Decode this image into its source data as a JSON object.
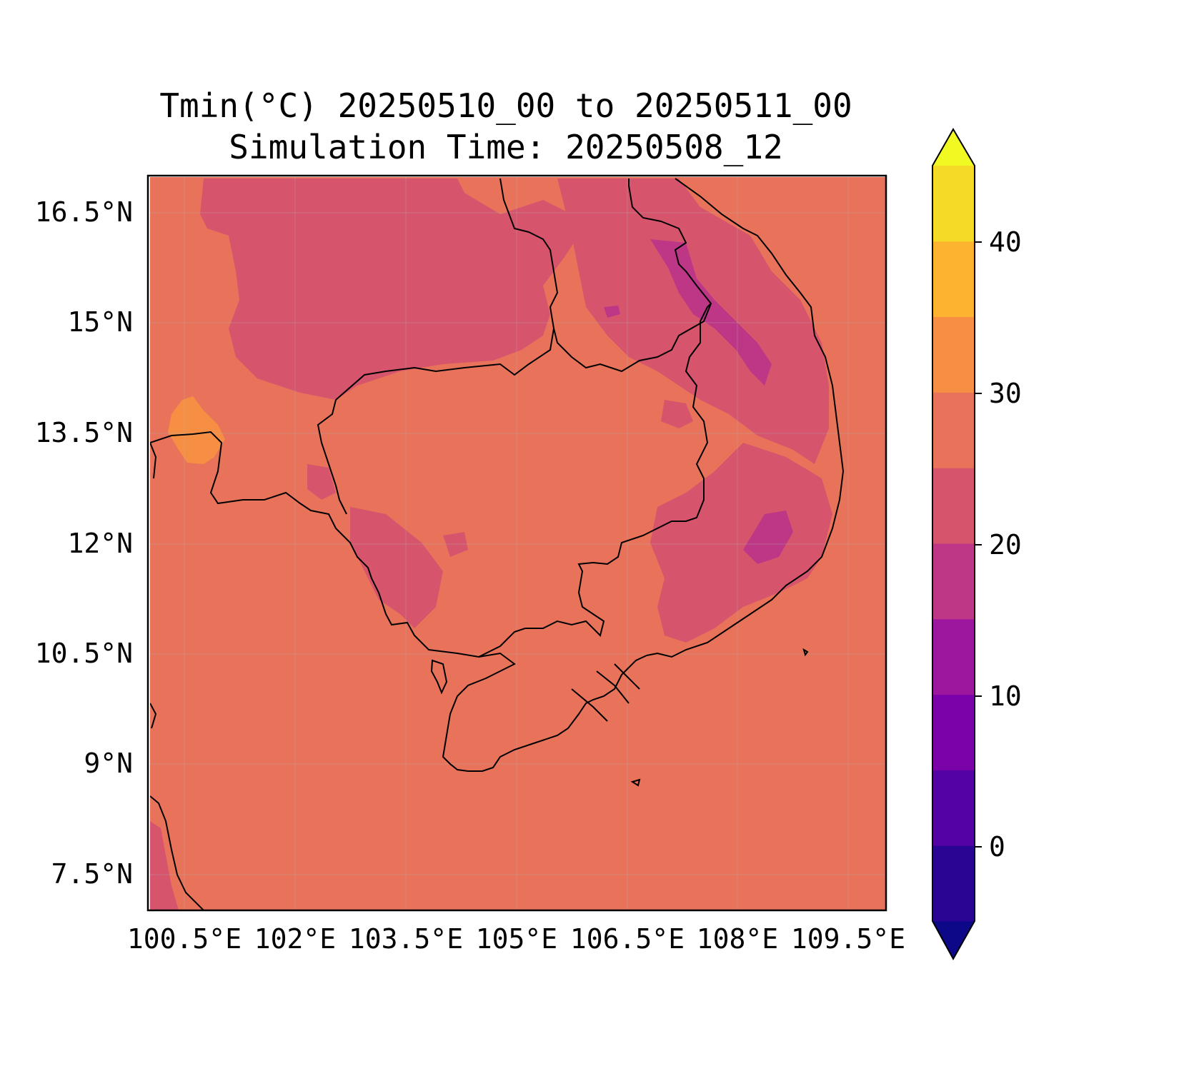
{
  "figure": {
    "title_line1": "Tmin(°C) 20250510_00 to 20250511_00",
    "title_line2": "Simulation Time: 20250508_12"
  },
  "map": {
    "background_color": "#e8735a",
    "region_palette": {
      "band_20_25": "#d6556d",
      "band_15_20": "#bd3786",
      "band_30_35": "#f68f44"
    },
    "lat_ticks": [
      "16.5°N",
      "15°N",
      "13.5°N",
      "12°N",
      "10.5°N",
      "9°N",
      "7.5°N"
    ],
    "lon_ticks": [
      "100.5°E",
      "102°E",
      "103.5°E",
      "105°E",
      "106.5°E",
      "108°E",
      "109.5°E"
    ]
  },
  "colorbar": {
    "ticks": [
      "0",
      "10",
      "20",
      "30",
      "40"
    ],
    "band_colors": [
      "#0d0887",
      "#2a0593",
      "#5402a3",
      "#7a02a8",
      "#9c179e",
      "#bd3786",
      "#d6556d",
      "#e8735a",
      "#f68f44",
      "#fdb32f",
      "#f5db25",
      "#f0f921"
    ]
  }
}
